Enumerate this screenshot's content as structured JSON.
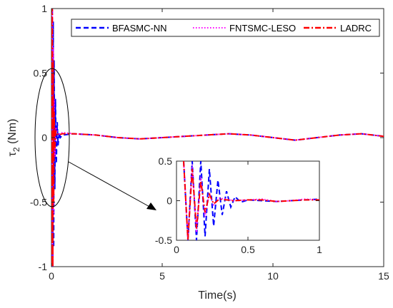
{
  "chart_data": {
    "type": "line",
    "title": "",
    "xlabel": "Time(s)",
    "ylabel_symbol": "τ",
    "ylabel_subscript": "2",
    "ylabel_unit": " (Nm)",
    "xlim": [
      0,
      15
    ],
    "ylim": [
      -1,
      1
    ],
    "xticks": [
      0,
      5,
      10,
      15
    ],
    "yticks": [
      -1,
      -0.5,
      0,
      0.5,
      1
    ],
    "grid": false,
    "legend_position": "top-right",
    "series": [
      {
        "name": "BFASMC-NN",
        "color": "#0000ff",
        "style": "dashed",
        "x": [
          0,
          0.02,
          0.04,
          0.06,
          0.08,
          0.1,
          0.12,
          0.15,
          0.18,
          0.22,
          0.26,
          0.3,
          0.35,
          0.4,
          0.5,
          1,
          2,
          3,
          4,
          5,
          6,
          7,
          8,
          9,
          10,
          11,
          12,
          13,
          14,
          15
        ],
        "values": [
          1,
          -1,
          1,
          -1,
          0.9,
          -0.85,
          0.6,
          -0.4,
          0.3,
          -0.2,
          0.12,
          -0.06,
          0.04,
          0.0,
          0.02,
          0.03,
          0.02,
          0.0,
          -0.01,
          0.0,
          0.01,
          0.02,
          0.03,
          0.02,
          0.0,
          -0.02,
          0.0,
          0.02,
          0.03,
          0.01
        ]
      },
      {
        "name": "FNTSMC-LESO",
        "color": "#ff00ff",
        "style": "dotted",
        "x": [
          0,
          0.02,
          0.04,
          0.06,
          0.08,
          0.1,
          0.12,
          0.15,
          0.2,
          0.3,
          0.5,
          1,
          2,
          3,
          4,
          5,
          6,
          7,
          8,
          9,
          10,
          11,
          12,
          13,
          14,
          15
        ],
        "values": [
          1,
          -1,
          1,
          -1,
          0.7,
          -0.6,
          0.3,
          -0.15,
          0.08,
          0.02,
          0.04,
          0.03,
          0.02,
          0.0,
          -0.01,
          0.0,
          0.01,
          0.02,
          0.03,
          0.02,
          0.0,
          -0.02,
          0.0,
          0.02,
          0.03,
          0.01
        ]
      },
      {
        "name": "LADRC",
        "color": "#ff0000",
        "style": "dashdot",
        "x": [
          0,
          0.02,
          0.04,
          0.06,
          0.08,
          0.1,
          0.12,
          0.15,
          0.2,
          0.3,
          0.5,
          1,
          2,
          3,
          4,
          5,
          6,
          7,
          8,
          9,
          10,
          11,
          12,
          13,
          14,
          15
        ],
        "values": [
          1,
          -1,
          1,
          -1,
          0.6,
          -0.5,
          0.2,
          -0.1,
          0.05,
          0.02,
          0.03,
          0.03,
          0.02,
          0.0,
          -0.01,
          0.0,
          0.01,
          0.02,
          0.03,
          0.02,
          0.0,
          -0.02,
          0.0,
          0.02,
          0.03,
          0.01
        ]
      }
    ],
    "inset": {
      "xlim": [
        0,
        1
      ],
      "ylim": [
        -0.5,
        0.5
      ],
      "xticks": [
        0,
        0.5,
        1
      ],
      "yticks": [
        -0.5,
        0,
        0.5
      ],
      "series": [
        {
          "name": "BFASMC-NN",
          "x": [
            0.05,
            0.08,
            0.11,
            0.14,
            0.17,
            0.2,
            0.23,
            0.26,
            0.29,
            0.32,
            0.35,
            0.38,
            0.41,
            0.45,
            0.5,
            0.6,
            0.7,
            0.8,
            0.9,
            1.0
          ],
          "values": [
            0.5,
            -0.5,
            0.5,
            -0.5,
            0.5,
            -0.45,
            0.4,
            -0.32,
            0.26,
            -0.18,
            0.12,
            -0.08,
            0.05,
            -0.02,
            0.01,
            0.0,
            -0.01,
            0.0,
            0.01,
            0.02
          ]
        },
        {
          "name": "FNTSMC-LESO",
          "x": [
            0.05,
            0.08,
            0.11,
            0.14,
            0.17,
            0.2,
            0.23,
            0.26,
            0.3,
            0.35,
            0.4,
            0.5,
            0.6,
            0.7,
            0.8,
            0.9,
            1.0
          ],
          "values": [
            0.5,
            -0.5,
            0.45,
            -0.4,
            0.3,
            -0.2,
            0.1,
            -0.05,
            0.03,
            0.02,
            0.0,
            0.01,
            0.02,
            -0.01,
            0.0,
            0.02,
            0.01
          ]
        },
        {
          "name": "LADRC",
          "x": [
            0.05,
            0.08,
            0.11,
            0.14,
            0.17,
            0.2,
            0.23,
            0.26,
            0.3,
            0.35,
            0.4,
            0.5,
            0.6,
            0.7,
            0.8,
            0.9,
            1.0
          ],
          "values": [
            0.5,
            -0.5,
            0.4,
            -0.35,
            0.25,
            -0.15,
            0.08,
            -0.04,
            0.02,
            0.01,
            0.0,
            0.01,
            0.01,
            -0.01,
            0.0,
            0.01,
            0.01
          ]
        }
      ]
    }
  }
}
